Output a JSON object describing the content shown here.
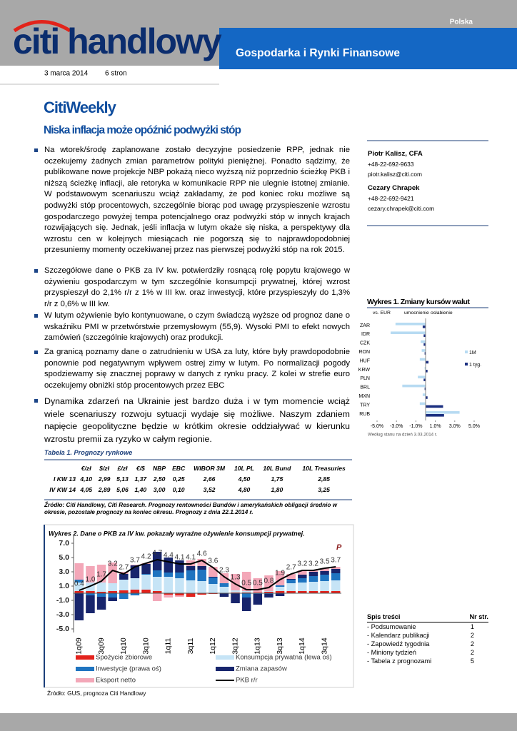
{
  "header": {
    "country": "Polska",
    "logo": "citi handlowy",
    "banner": "Gospodarka i Rynki Finansowe",
    "date": "3 marca 2014",
    "pages": "6 stron"
  },
  "title": "CitiWeekly",
  "subtitle": "Niska inflacja może opóźnić podwyżki stóp",
  "bullets": [
    "Na wtorek/środę zaplanowane zostało decyzyjne posiedzenie RPP, jednak nie oczekujemy żadnych zmian parametrów polityki pieniężnej. Ponadto sądzimy, że publikowane nowe projekcje NBP pokażą nieco wyższą niż poprzednio ścieżkę PKB i niższą ścieżkę inflacji, ale retoryka w komunikacie RPP nie ulegnie istotnej zmianie. W podstawowym scenariuszu wciąż zakładamy, że pod koniec roku możliwe są podwyżki stóp procentowych, szczególnie biorąc pod uwagę przyspieszenie wzrostu gospodarczego powyżej tempa potencjalnego oraz podwyżki stóp w innych krajach rozwijających się. Jednak, jeśli inflacja w lutym okaże się niska, a perspektywy dla wzrostu cen w kolejnych miesiącach nie pogorszą się to najprawdopodobniej przesuniemy momenty oczekiwanej przez nas pierwszej podwyżki stóp na rok 2015.",
    "Szczegółowe dane o PKB za IV kw. potwierdziły rosnącą rolę popytu krajowego w ożywieniu gospodarczym w tym szczególnie konsumpcji prywatnej, której wzrost przyspieszył do 2,1% r/r z 1% w III kw. oraz inwestycji, które przyspieszyły do 1,3% r/r z 0,6% w III kw.",
    "W lutym ożywienie było kontynuowane, o czym świadczą wyższe od prognoz dane o wskaźniku PMI w przetwórstwie przemysłowym (55,9). Wysoki PMI to efekt nowych zamówień (szczególnie krajowych) oraz produkcji.",
    "Za granicą poznamy dane o zatrudnieniu w USA za luty, które były prawdopodobnie ponownie pod negatywnym wpływem ostrej zimy w lutym. Po normalizacji pogody spodziewamy się znacznej poprawy w danych z rynku pracy. Z kolei w strefie euro oczekujemy obniżki stóp procentowych przez EBC",
    "Dynamika zdarzeń na Ukrainie jest bardzo duża i w tym momencie wciąż wiele scenariuszy rozwoju sytuacji wydaje się możliwe. Naszym zdaniem napięcie geopolityczne będzie w krótkim okresie oddziaływać w kierunku wzrostu premii za ryzyko w całym regionie."
  ],
  "authors": [
    {
      "name": "Piotr Kalisz, CFA",
      "phone": "+48-22-692-9633",
      "email": "piotr.kalisz@citi.com"
    },
    {
      "name": "Cezary Chrapek",
      "phone": "+48-22-692-9421",
      "email": "cezary.chrapek@citi.com"
    }
  ],
  "chart_data": [
    {
      "type": "bar",
      "orientation": "horizontal",
      "title": "Wykres 1. Zmiany kursów walut",
      "annotations": [
        "vs. EUR",
        "umocnienie",
        "osłabienie"
      ],
      "note": "Według stanu na dzień 3.03.2014 r.",
      "categories": [
        "ZAR",
        "IDR",
        "CZK",
        "RON",
        "HUF",
        "KRW",
        "PLN",
        "BRL",
        "MXN",
        "TRY",
        "RUB"
      ],
      "series": [
        {
          "name": "1M",
          "color": "#b7dbf2",
          "values": [
            -3.1,
            -3.6,
            -0.5,
            -0.4,
            -0.6,
            -0.1,
            -0.8,
            -2.4,
            -0.3,
            -0.6,
            3.5
          ]
        },
        {
          "name": "1 tyg.",
          "color": "#1b2f80",
          "values": [
            -0.3,
            -0.2,
            -0.2,
            -0.1,
            0.3,
            0.2,
            -0.2,
            -0.1,
            0.2,
            1.8,
            1.9
          ]
        }
      ],
      "xlim": [
        -5,
        5
      ],
      "xticks": [
        {
          "value": -5,
          "label": "-5.0%"
        },
        {
          "value": -3,
          "label": "-3.0%"
        },
        {
          "value": -1,
          "label": "-1.0%"
        },
        {
          "value": 1,
          "label": "1.0%"
        },
        {
          "value": 3,
          "label": "3.0%"
        },
        {
          "value": 5,
          "label": "5.0%"
        }
      ]
    },
    {
      "type": "bar",
      "stacked": true,
      "title": "Wykres 2. Dane o PKB za IV kw. pokazały wyraźne ożywienie konsumpcji prywatnej.",
      "annotation": "P",
      "categories": [
        "1q09",
        null,
        "3q09",
        null,
        "1q10",
        null,
        "3q10",
        null,
        "1q11",
        null,
        "3q11",
        null,
        "1q12",
        null,
        "3q12",
        null,
        "1q13",
        null,
        "3q13",
        null,
        "1q14",
        null,
        "3q14",
        null
      ],
      "series": [
        {
          "name": "Spożycie zbiorowe",
          "color": "#e3221c",
          "values": [
            0.3,
            0.3,
            0.2,
            0.3,
            0.4,
            0.5,
            0.5,
            0.3,
            -0.2,
            -0.3,
            -0.5,
            -0.2,
            -0.1,
            0.0,
            0.1,
            0.1,
            0.1,
            0.2,
            0.3,
            0.3,
            0.3,
            0.3,
            0.3,
            0.3
          ]
        },
        {
          "name": "Konsumpcja prywatna (lewa oś)",
          "color": "#c6e4f6",
          "values": [
            1.2,
            1.2,
            1.3,
            1.1,
            1.5,
            1.6,
            2.1,
            2.0,
            2.3,
            2.1,
            1.8,
            1.7,
            1.3,
            0.9,
            0.3,
            0.2,
            0.0,
            0.1,
            0.6,
            1.1,
            1.2,
            1.3,
            1.4,
            1.5
          ]
        },
        {
          "name": "Inwestycje (prawa oś)",
          "color": "#1f74c0",
          "values": [
            0.4,
            -0.3,
            -0.5,
            -0.6,
            -0.8,
            -0.3,
            0.1,
            0.9,
            0.6,
            0.8,
            1.4,
            1.6,
            0.9,
            0.5,
            0.0,
            -0.6,
            -0.1,
            -0.1,
            0.2,
            0.5,
            0.6,
            0.8,
            0.9,
            1.0
          ]
        },
        {
          "name": "Zmiana zapasów",
          "color": "#18256c",
          "values": [
            -3.8,
            -2.5,
            -1.8,
            -0.5,
            0.8,
            1.8,
            1.4,
            2.6,
            2.1,
            1.7,
            0.6,
            0.5,
            0.1,
            -0.5,
            -1.4,
            -1.9,
            -1.5,
            -0.5,
            -0.4,
            0.1,
            0.5,
            0.6,
            0.5,
            0.6
          ]
        },
        {
          "name": "Eksport netto",
          "color": "#f3a7b8",
          "values": [
            2.3,
            2.3,
            2.5,
            2.9,
            0.3,
            0.1,
            0.1,
            -1.1,
            -0.4,
            -0.2,
            0.8,
            1.0,
            1.4,
            1.4,
            2.3,
            2.7,
            2.0,
            2.2,
            2.0,
            0.7,
            0.6,
            0.2,
            0.4,
            0.3
          ]
        },
        {
          "name": "PKB r/r",
          "type": "line",
          "color": "#000000",
          "values": [
            0.4,
            1.0,
            1.7,
            3.2,
            2.7,
            3.7,
            4.2,
            4.7,
            4.4,
            4.1,
            4.1,
            4.6,
            3.6,
            2.3,
            1.3,
            0.5,
            0.5,
            0.8,
            1.9,
            2.7,
            3.2,
            3.2,
            3.5,
            3.7
          ],
          "value_labels": [
            "0.4",
            "1.0",
            "1.7",
            "3.2",
            "2.7",
            "3.7",
            "4.2",
            "4.7",
            "4.4",
            "4.1",
            "4.1",
            "4.6",
            "3.6",
            "2.3",
            "1.3",
            "0.5",
            "0.5",
            "0.8",
            "1.9",
            "2.7",
            "3.2",
            "3.2",
            "3.5",
            "3.7"
          ]
        }
      ],
      "ylim": [
        -5.5,
        8
      ],
      "yticks": [
        {
          "value": 7,
          "label": "7.0"
        },
        {
          "value": 5,
          "label": "5.0"
        },
        {
          "value": 3,
          "label": "3.0"
        },
        {
          "value": 1,
          "label": "1.0"
        },
        {
          "value": -1,
          "label": "-1.0"
        },
        {
          "value": -3,
          "label": "-3.0"
        },
        {
          "value": -5,
          "label": "-5.0"
        }
      ],
      "source": "Źródło: GUS, prognoza Citi Handlowy"
    }
  ],
  "table": {
    "title": "Tabela 1. Prognozy rynkowe",
    "columns": [
      "€/zł",
      "$/zł",
      "£/zł",
      "€/$",
      "NBP",
      "EBC",
      "WIBOR 3M",
      "10L PL",
      "10L Bund",
      "10L Treasuries"
    ],
    "rows": [
      [
        "I KW 13",
        "4,10",
        "2,99",
        "5,13",
        "1,37",
        "2,50",
        "0,25",
        "2,66",
        "4,50",
        "1,75",
        "2,85"
      ],
      [
        "IV KW 14",
        "4,05",
        "2,89",
        "5,06",
        "1,40",
        "3,00",
        "0,10",
        "3,52",
        "4,80",
        "1,80",
        "3,25"
      ]
    ],
    "note": "Źródło: Citi Handlowy, Citi Research. Prognozy rentowności Bundów i amerykańskich obligacji średnio w okresie, pozostałe prognozy na koniec okresu. Prognozy z dnia 22.1.2014 r."
  },
  "toc": {
    "header": [
      "Spis treści",
      "Nr str."
    ],
    "rows": [
      [
        "- Podsumowanie",
        "1"
      ],
      [
        "- Kalendarz publikacji",
        "2"
      ],
      [
        "- Zapowiedź tygodnia",
        "2"
      ],
      [
        "- Miniony tydzień",
        "2"
      ],
      [
        "- Tabela z prognozami",
        "5"
      ]
    ]
  }
}
